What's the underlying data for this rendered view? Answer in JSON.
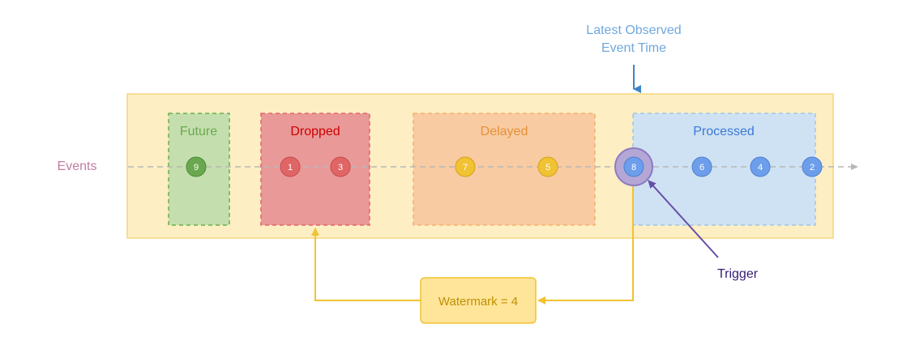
{
  "diagram": {
    "events_label": "Events",
    "latest_observed": {
      "line1": "Latest Observed",
      "line2": "Event Time"
    },
    "trigger_label": "Trigger",
    "watermark_label": "Watermark = 4",
    "zones": {
      "future": {
        "label": "Future"
      },
      "dropped": {
        "label": "Dropped"
      },
      "delayed": {
        "label": "Delayed"
      },
      "processed": {
        "label": "Processed"
      }
    },
    "events": [
      {
        "num": "9",
        "zone": "future"
      },
      {
        "num": "1",
        "zone": "dropped"
      },
      {
        "num": "3",
        "zone": "dropped"
      },
      {
        "num": "7",
        "zone": "delayed"
      },
      {
        "num": "5",
        "zone": "delayed"
      },
      {
        "num": "8",
        "zone": "trigger"
      },
      {
        "num": "6",
        "zone": "processed"
      },
      {
        "num": "4",
        "zone": "processed"
      },
      {
        "num": "2",
        "zone": "processed"
      }
    ],
    "colors": {
      "container_fill": "#fdeec4",
      "container_stroke": "#f5d67d",
      "future_fill": "#c4dfad",
      "future_stroke": "#6ab04c",
      "future_text": "#6aa84f",
      "future_dot": "#6aa84f",
      "dropped_fill": "#ea9999",
      "dropped_stroke": "#e06666",
      "dropped_text": "#cc0000",
      "dropped_dot": "#e06666",
      "delayed_fill": "#f8cba2",
      "delayed_stroke": "#f6b26b",
      "delayed_text": "#e69138",
      "delayed_dot": "#f1c232",
      "processed_fill": "#cfe2f3",
      "processed_stroke": "#9fc5e8",
      "processed_text": "#3c78d8",
      "processed_dot": "#6d9eeb",
      "trigger_ring": "#b4a7d6",
      "trigger_ring_stroke": "#8e7cc3",
      "trigger_text": "#351c75",
      "trigger_arrow": "#674ea7",
      "events_text": "#c27ba0",
      "latest_text": "#6fa8dc",
      "latest_arrow": "#3d85c6",
      "axis_line": "#b7b7b7",
      "watermark_fill": "#ffe599",
      "watermark_stroke": "#f1c232",
      "watermark_text": "#bf9000",
      "watermark_line": "#f1c232"
    }
  }
}
